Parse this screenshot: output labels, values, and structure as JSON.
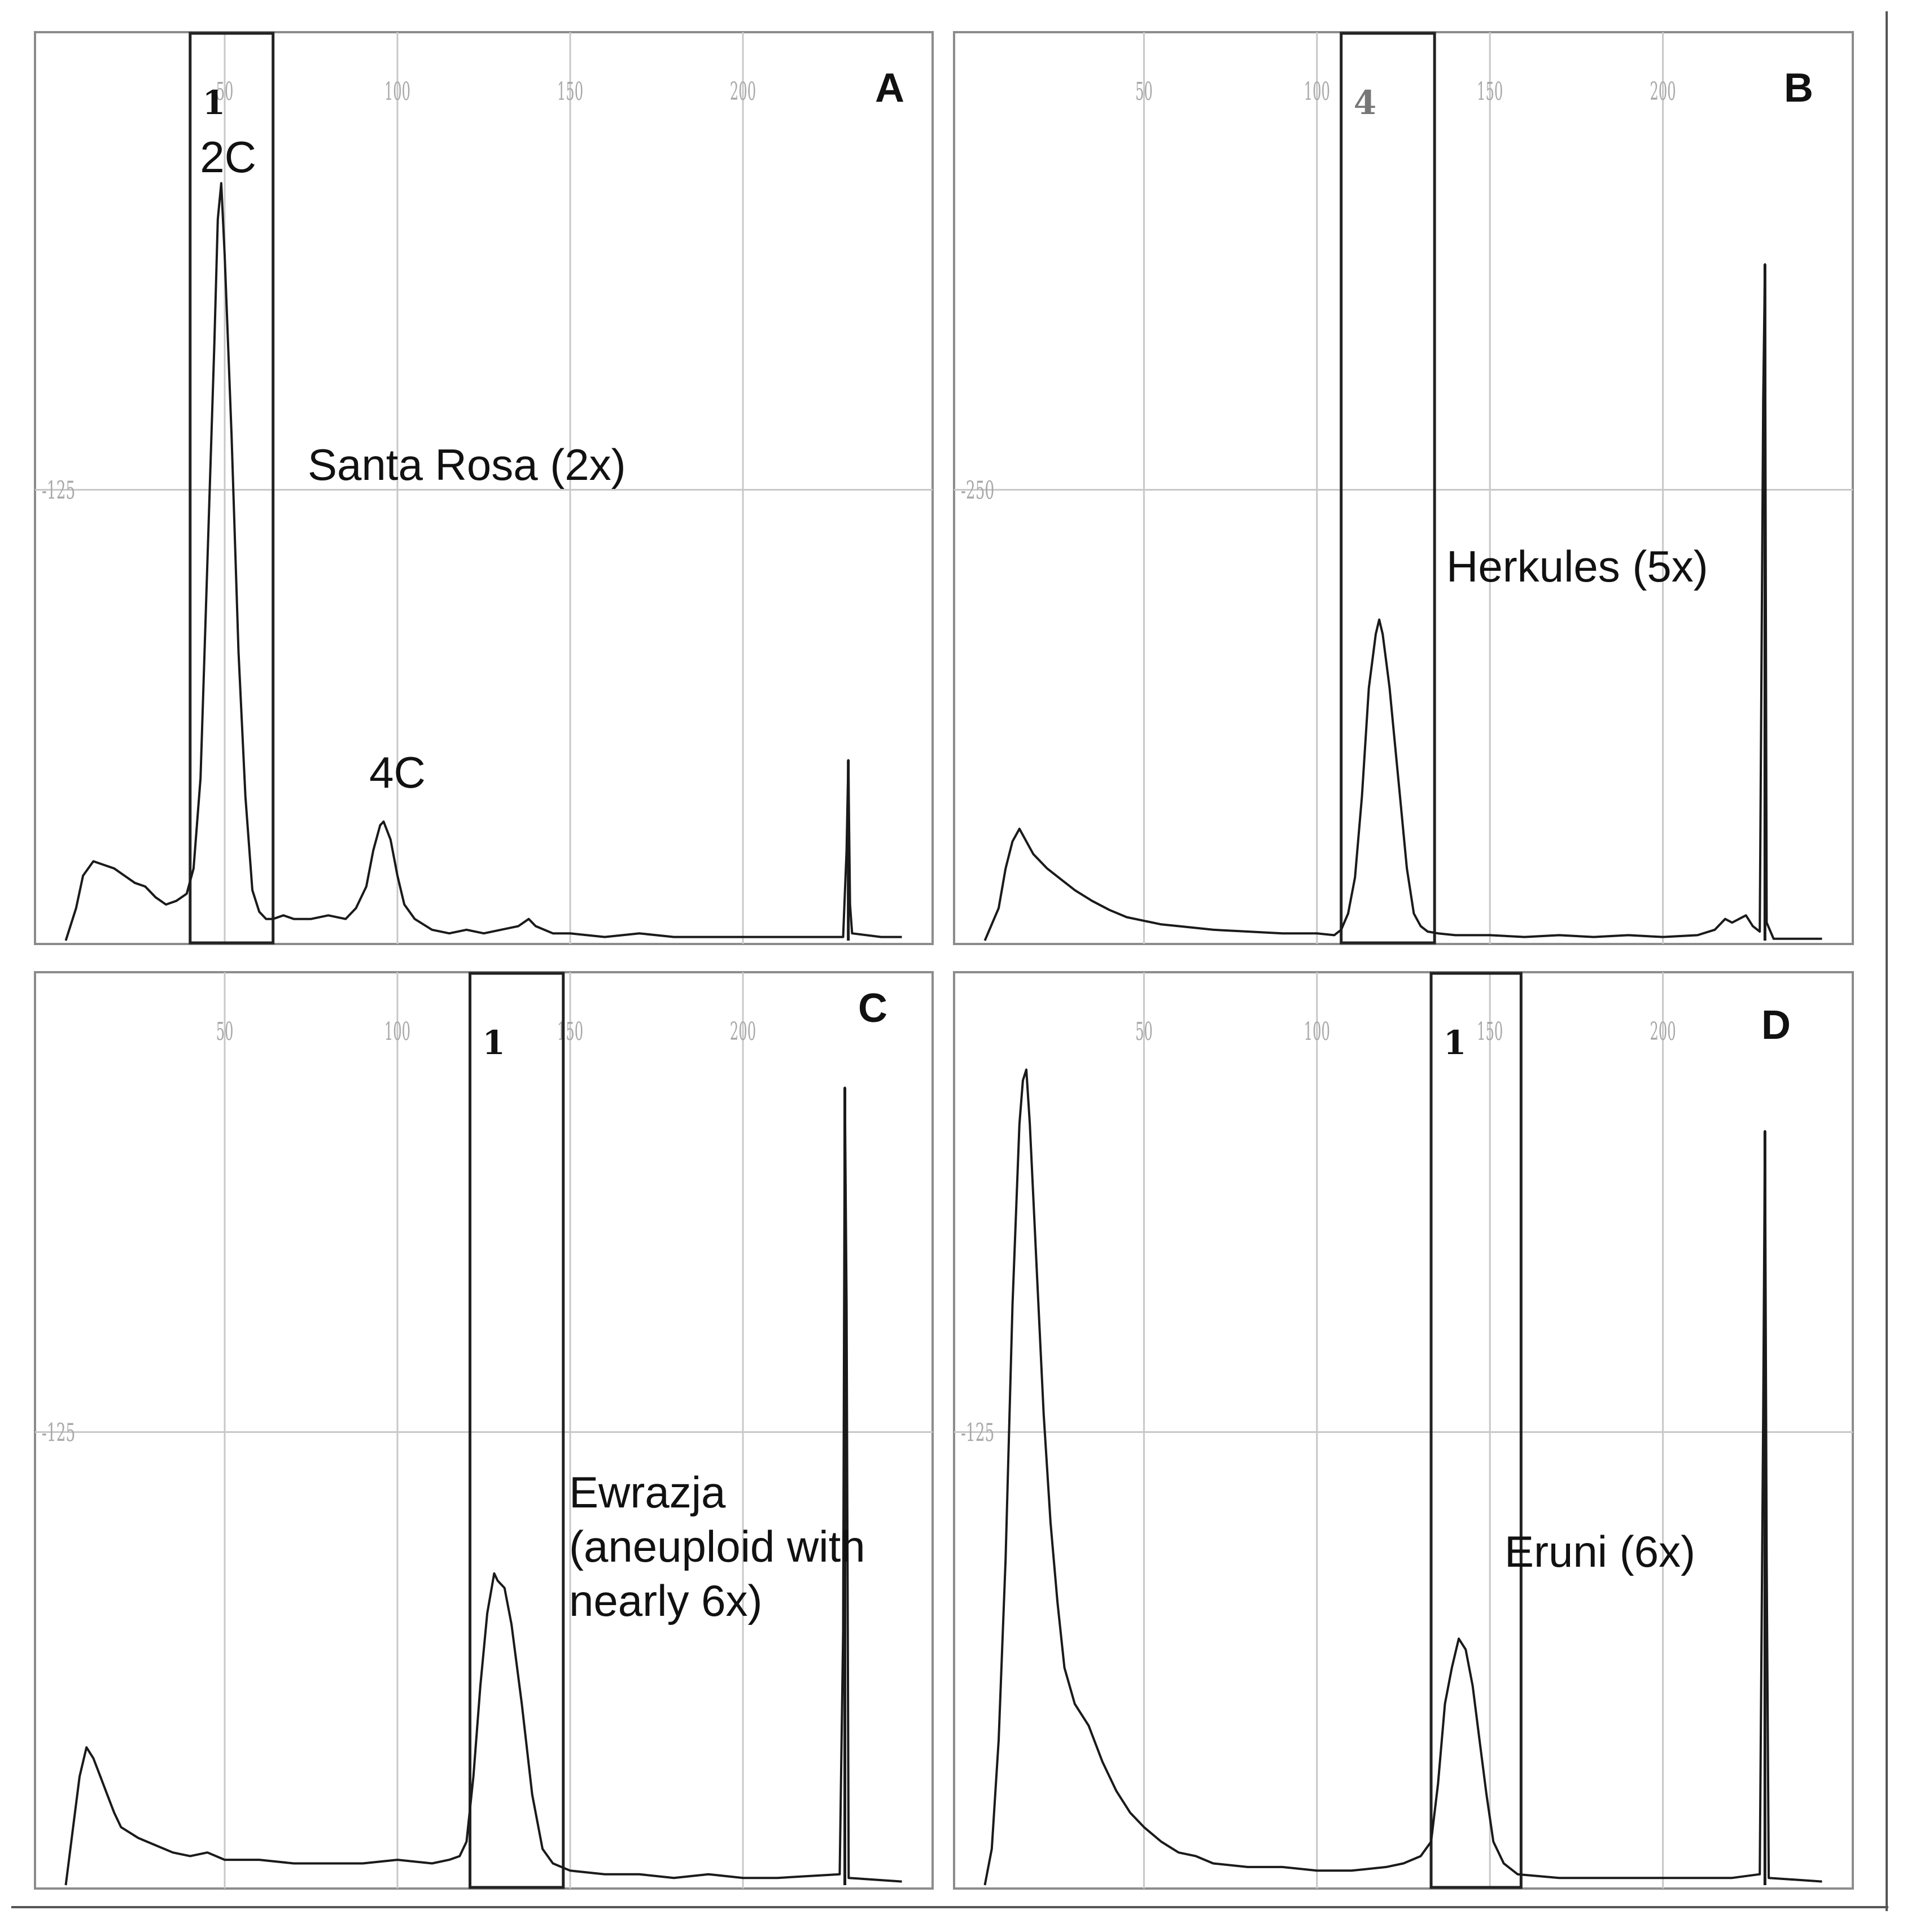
{
  "figure": {
    "colors": {
      "trace": "#1a1a1a",
      "grid": "#c8c8c8",
      "tick": "#a8a8a8",
      "frame": "#8c8c8c",
      "gate": "#222222"
    }
  },
  "chart_data": [
    {
      "type": "line",
      "panel_letter": "A",
      "title": "",
      "xlabel": "",
      "ylabel": "",
      "xlim": [
        0,
        250
      ],
      "ylim": [
        0,
        250
      ],
      "x_ticks": [
        "50",
        "100",
        "150",
        "200"
      ],
      "y_tick_value": 125,
      "y_tick_label": "-125",
      "grid": true,
      "gate": {
        "label": "1",
        "x_range": [
          40,
          64
        ]
      },
      "sample_label": "Santa Rosa (2x)",
      "annotations": [
        {
          "text": "2C",
          "x": 51
        },
        {
          "text": "4C",
          "x": 100
        }
      ],
      "series": [
        {
          "points": [
            [
              4,
              0
            ],
            [
              7,
              9
            ],
            [
              9,
              18
            ],
            [
              12,
              22
            ],
            [
              15,
              21
            ],
            [
              18,
              20
            ],
            [
              21,
              18
            ],
            [
              24,
              16
            ],
            [
              27,
              15
            ],
            [
              30,
              12
            ],
            [
              33,
              10
            ],
            [
              36,
              11
            ],
            [
              39,
              13
            ],
            [
              41,
              20
            ],
            [
              43,
              45
            ],
            [
              45,
              105
            ],
            [
              47,
              165
            ],
            [
              48,
              200
            ],
            [
              49,
              210
            ],
            [
              50,
              190
            ],
            [
              52,
              140
            ],
            [
              54,
              80
            ],
            [
              56,
              40
            ],
            [
              58,
              14
            ],
            [
              60,
              8
            ],
            [
              62,
              6
            ],
            [
              64,
              6
            ],
            [
              67,
              7
            ],
            [
              70,
              6
            ],
            [
              75,
              6
            ],
            [
              80,
              7
            ],
            [
              85,
              6
            ],
            [
              88,
              9
            ],
            [
              91,
              15
            ],
            [
              93,
              25
            ],
            [
              95,
              32
            ],
            [
              96,
              33
            ],
            [
              98,
              28
            ],
            [
              100,
              18
            ],
            [
              102,
              10
            ],
            [
              105,
              6
            ],
            [
              110,
              3
            ],
            [
              115,
              2
            ],
            [
              120,
              3
            ],
            [
              125,
              2
            ],
            [
              130,
              3
            ],
            [
              135,
              4
            ],
            [
              138,
              6
            ],
            [
              140,
              4
            ],
            [
              145,
              2
            ],
            [
              150,
              2
            ],
            [
              160,
              1
            ],
            [
              170,
              2
            ],
            [
              180,
              1
            ],
            [
              190,
              1
            ],
            [
              200,
              1
            ],
            [
              210,
              1
            ],
            [
              229,
              1
            ],
            [
              230,
              25
            ],
            [
              230.5,
              50
            ],
            [
              231,
              10
            ],
            [
              231.6,
              2
            ],
            [
              240,
              1
            ],
            [
              246,
              1
            ]
          ]
        }
      ],
      "spike": {
        "x": 230.5,
        "y": 50
      }
    },
    {
      "type": "line",
      "panel_letter": "B",
      "title": "",
      "xlabel": "",
      "ylabel": "",
      "xlim": [
        0,
        250
      ],
      "ylim": [
        0,
        500
      ],
      "x_ticks": [
        "50",
        "100",
        "150",
        "200"
      ],
      "y_tick_value": 250,
      "y_tick_label": "-250",
      "grid": true,
      "gate": {
        "label": "4",
        "x_range": [
          107,
          134
        ]
      },
      "sample_label": "Herkules (5x)",
      "annotations": [],
      "series": [
        {
          "points": [
            [
              4,
              0
            ],
            [
              8,
              18
            ],
            [
              10,
              40
            ],
            [
              12,
              55
            ],
            [
              14,
              62
            ],
            [
              16,
              55
            ],
            [
              18,
              48
            ],
            [
              22,
              40
            ],
            [
              26,
              34
            ],
            [
              30,
              28
            ],
            [
              35,
              22
            ],
            [
              40,
              17
            ],
            [
              45,
              13
            ],
            [
              50,
              11
            ],
            [
              55,
              9
            ],
            [
              60,
              8
            ],
            [
              70,
              6
            ],
            [
              80,
              5
            ],
            [
              90,
              4
            ],
            [
              100,
              4
            ],
            [
              105,
              3
            ],
            [
              107,
              6
            ],
            [
              109,
              15
            ],
            [
              111,
              35
            ],
            [
              113,
              80
            ],
            [
              115,
              140
            ],
            [
              117,
              170
            ],
            [
              118,
              178
            ],
            [
              119,
              170
            ],
            [
              120,
              155
            ],
            [
              121,
              140
            ],
            [
              122,
              120
            ],
            [
              124,
              80
            ],
            [
              126,
              40
            ],
            [
              128,
              15
            ],
            [
              130,
              8
            ],
            [
              132,
              5
            ],
            [
              135,
              4
            ],
            [
              140,
              3
            ],
            [
              150,
              3
            ],
            [
              160,
              2
            ],
            [
              170,
              3
            ],
            [
              180,
              2
            ],
            [
              190,
              3
            ],
            [
              200,
              2
            ],
            [
              210,
              3
            ],
            [
              215,
              6
            ],
            [
              218,
              12
            ],
            [
              220,
              10
            ],
            [
              224,
              14
            ],
            [
              226,
              8
            ],
            [
              228,
              5
            ],
            [
              229,
              300
            ],
            [
              229.5,
              375
            ],
            [
              230,
              10
            ],
            [
              232,
              1
            ],
            [
              246,
              1
            ]
          ]
        }
      ],
      "spike": {
        "x": 229.5,
        "y": 375
      }
    },
    {
      "type": "line",
      "panel_letter": "C",
      "title": "",
      "xlabel": "",
      "ylabel": "",
      "xlim": [
        0,
        250
      ],
      "ylim": [
        0,
        250
      ],
      "x_ticks": [
        "50",
        "100",
        "150",
        "200"
      ],
      "y_tick_value": 125,
      "y_tick_label": "-125",
      "grid": true,
      "gate": {
        "label": "1",
        "x_range": [
          121,
          148
        ]
      },
      "sample_label": "Ewrazja (aneuploid with nearly 6x)",
      "annotations": [],
      "series": [
        {
          "points": [
            [
              4,
              0
            ],
            [
              6,
              15
            ],
            [
              8,
              30
            ],
            [
              10,
              38
            ],
            [
              12,
              35
            ],
            [
              14,
              30
            ],
            [
              16,
              25
            ],
            [
              18,
              20
            ],
            [
              20,
              16
            ],
            [
              25,
              13
            ],
            [
              30,
              11
            ],
            [
              35,
              9
            ],
            [
              40,
              8
            ],
            [
              45,
              9
            ],
            [
              50,
              7
            ],
            [
              60,
              7
            ],
            [
              70,
              6
            ],
            [
              80,
              6
            ],
            [
              90,
              6
            ],
            [
              100,
              7
            ],
            [
              110,
              6
            ],
            [
              115,
              7
            ],
            [
              118,
              8
            ],
            [
              120,
              12
            ],
            [
              122,
              30
            ],
            [
              124,
              55
            ],
            [
              126,
              75
            ],
            [
              128,
              86
            ],
            [
              129,
              84
            ],
            [
              131,
              82
            ],
            [
              133,
              72
            ],
            [
              136,
              50
            ],
            [
              139,
              25
            ],
            [
              142,
              10
            ],
            [
              145,
              6
            ],
            [
              150,
              4
            ],
            [
              160,
              3
            ],
            [
              170,
              3
            ],
            [
              180,
              2
            ],
            [
              190,
              3
            ],
            [
              200,
              2
            ],
            [
              210,
              2
            ],
            [
              228,
              3
            ],
            [
              229,
              70
            ],
            [
              229.5,
              220
            ],
            [
              230,
              160
            ],
            [
              230.6,
              2
            ],
            [
              246,
              1
            ]
          ]
        }
      ],
      "spike": {
        "x": 229.5,
        "y": 220
      }
    },
    {
      "type": "line",
      "panel_letter": "D",
      "title": "",
      "xlabel": "",
      "ylabel": "",
      "xlim": [
        0,
        250
      ],
      "ylim": [
        0,
        250
      ],
      "x_ticks": [
        "50",
        "100",
        "150",
        "200"
      ],
      "y_tick_value": 125,
      "y_tick_label": "-125",
      "grid": true,
      "gate": {
        "label": "1",
        "x_range": [
          133,
          159
        ]
      },
      "sample_label": "Eruni (6x)",
      "annotations": [],
      "series": [
        {
          "points": [
            [
              4,
              0
            ],
            [
              6,
              10
            ],
            [
              8,
              40
            ],
            [
              10,
              90
            ],
            [
              12,
              160
            ],
            [
              14,
              210
            ],
            [
              15,
              222
            ],
            [
              16,
              225
            ],
            [
              17,
              210
            ],
            [
              19,
              170
            ],
            [
              21,
              130
            ],
            [
              23,
              100
            ],
            [
              25,
              78
            ],
            [
              27,
              60
            ],
            [
              30,
              50
            ],
            [
              34,
              44
            ],
            [
              38,
              34
            ],
            [
              42,
              26
            ],
            [
              46,
              20
            ],
            [
              50,
              16
            ],
            [
              55,
              12
            ],
            [
              60,
              9
            ],
            [
              65,
              8
            ],
            [
              70,
              6
            ],
            [
              80,
              5
            ],
            [
              90,
              5
            ],
            [
              100,
              4
            ],
            [
              110,
              4
            ],
            [
              120,
              5
            ],
            [
              125,
              6
            ],
            [
              130,
              8
            ],
            [
              133,
              12
            ],
            [
              135,
              28
            ],
            [
              137,
              50
            ],
            [
              139,
              60
            ],
            [
              141,
              68
            ],
            [
              143,
              65
            ],
            [
              145,
              55
            ],
            [
              147,
              40
            ],
            [
              149,
              25
            ],
            [
              151,
              12
            ],
            [
              154,
              6
            ],
            [
              158,
              3
            ],
            [
              170,
              2
            ],
            [
              180,
              2
            ],
            [
              190,
              2
            ],
            [
              200,
              2
            ],
            [
              210,
              2
            ],
            [
              220,
              2
            ],
            [
              228,
              3
            ],
            [
              229,
              130
            ],
            [
              229.5,
              208
            ],
            [
              230,
              90
            ],
            [
              230.6,
              2
            ],
            [
              246,
              1
            ]
          ]
        }
      ],
      "spike": {
        "x": 229.5,
        "y": 208
      }
    }
  ]
}
